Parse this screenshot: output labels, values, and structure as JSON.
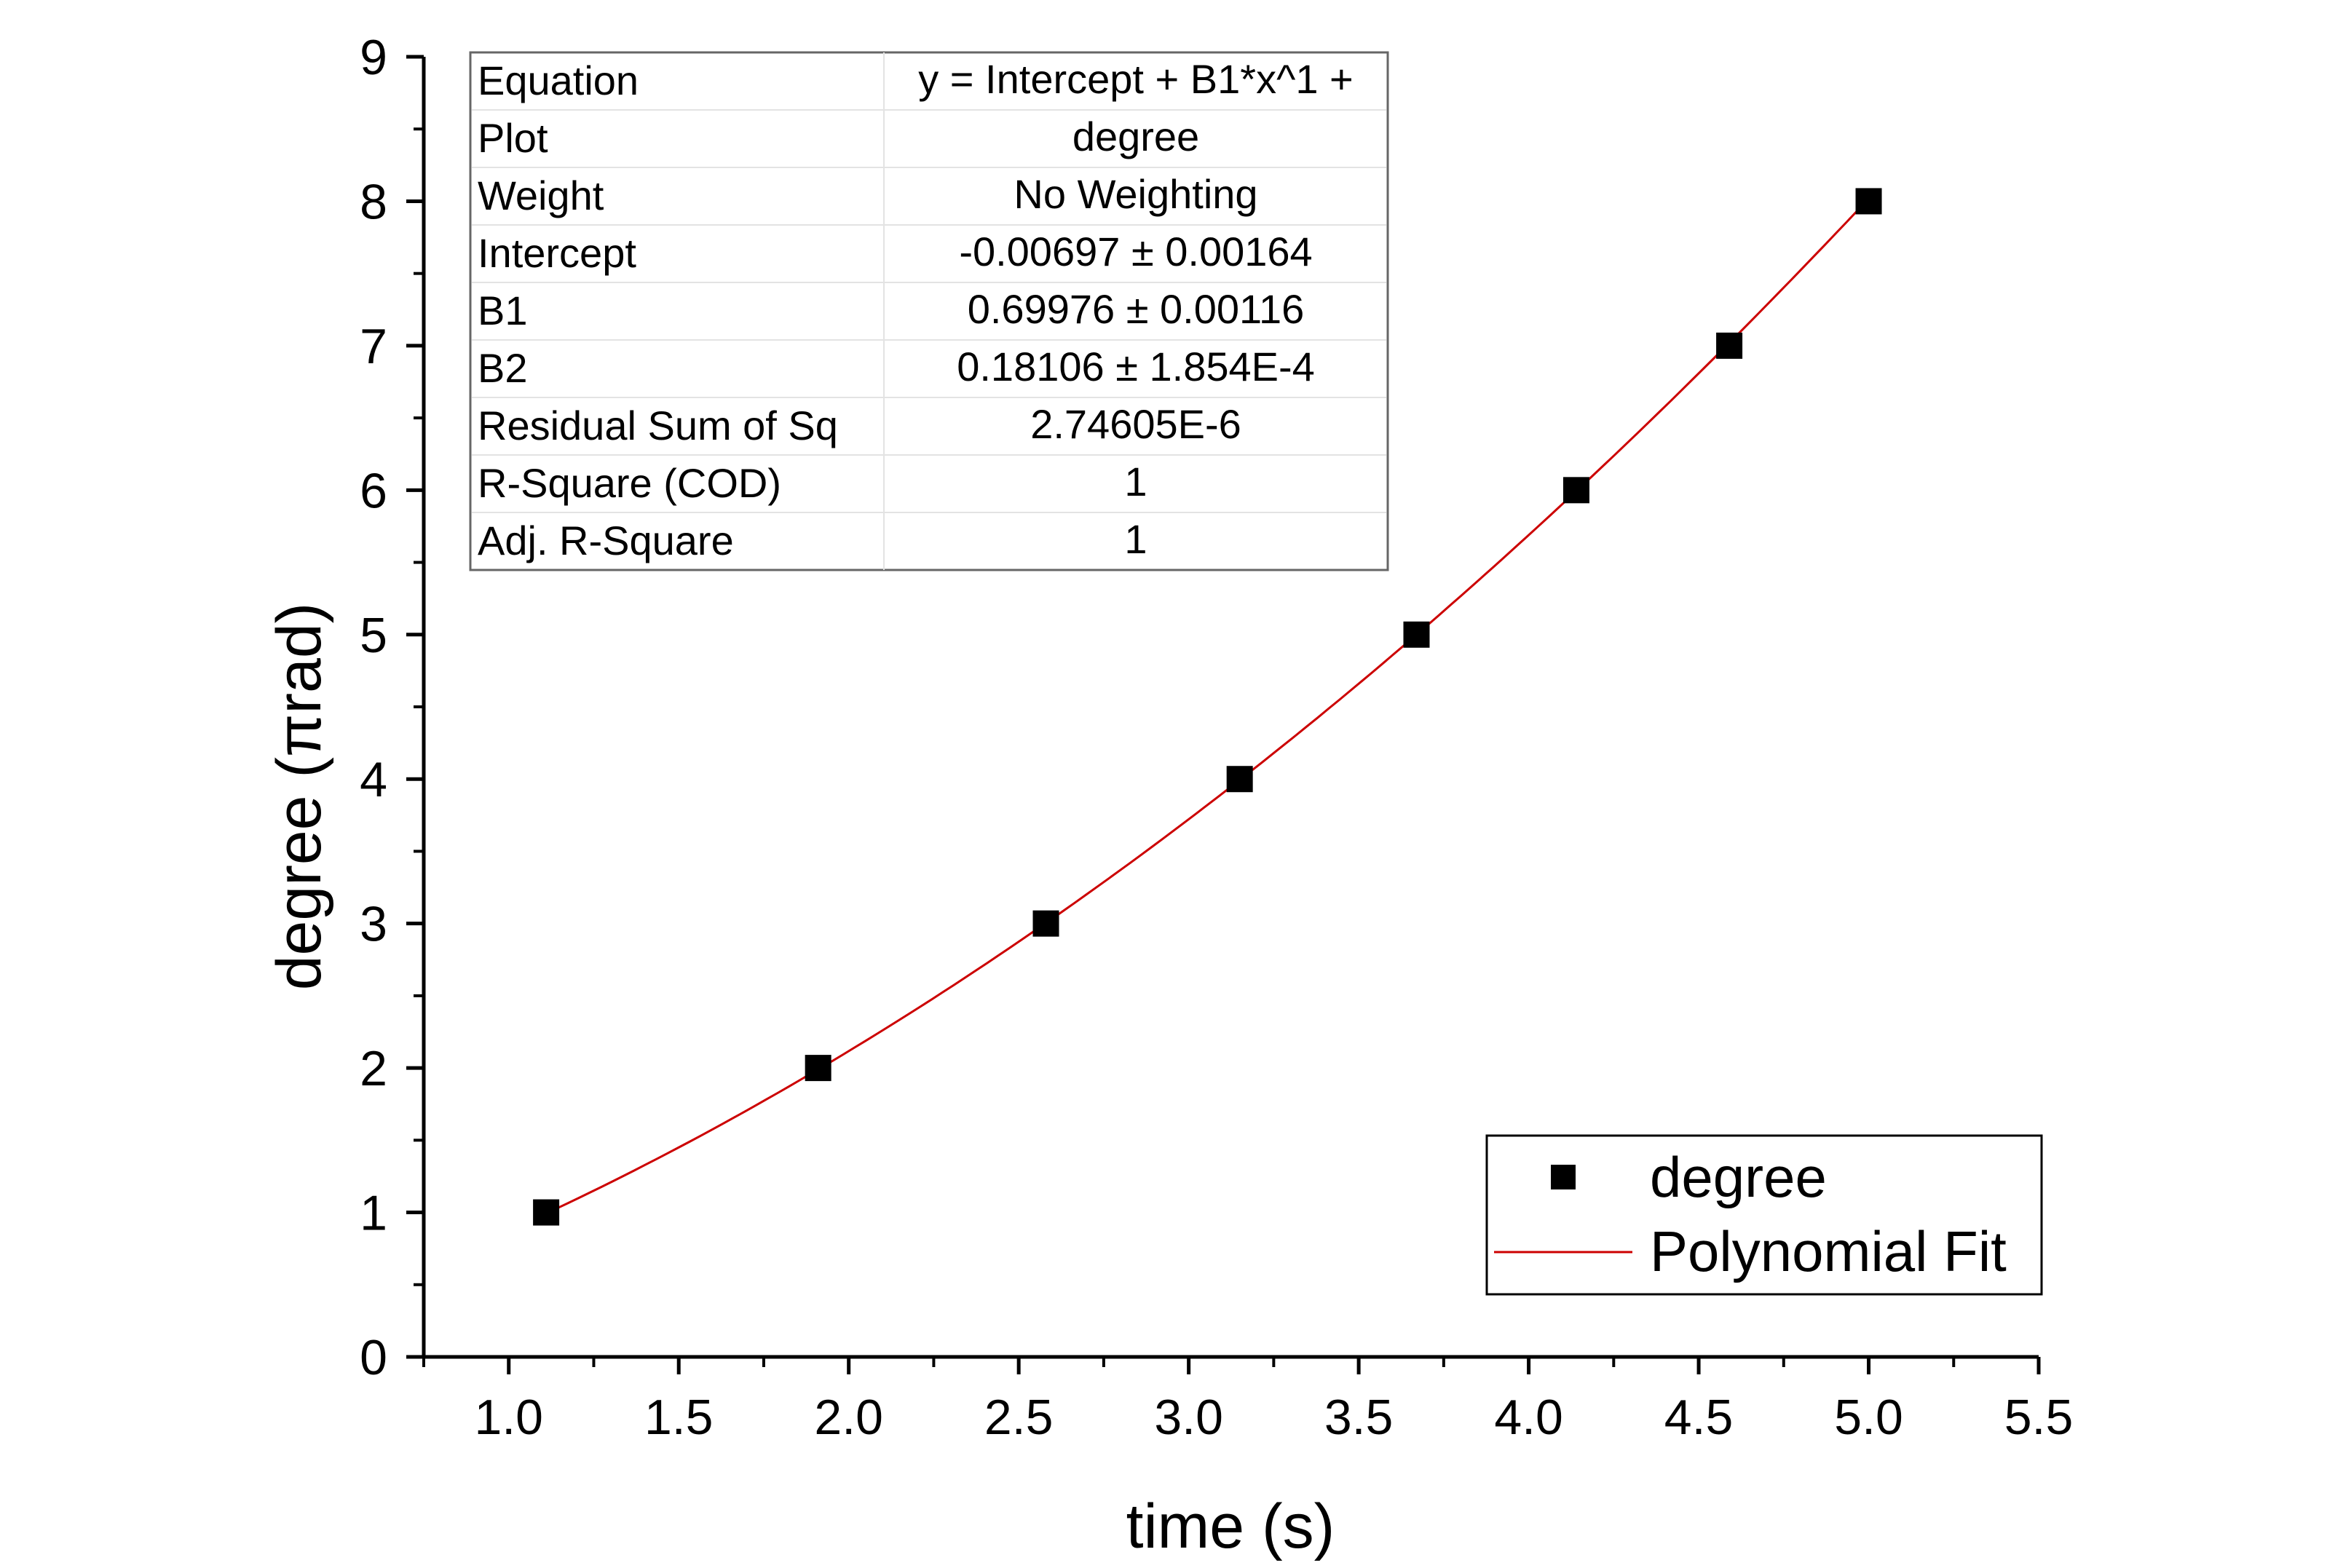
{
  "chart_data": {
    "type": "scatter",
    "xlabel": "time (s)",
    "ylabel": "degree (πrad)",
    "xlim": [
      0.75,
      5.5
    ],
    "ylim": [
      0,
      9
    ],
    "x_ticks": [
      "1.0",
      "1.5",
      "2.0",
      "2.5",
      "3.0",
      "3.5",
      "4.0",
      "4.5",
      "5.0",
      "5.5"
    ],
    "y_ticks": [
      "0",
      "1",
      "2",
      "3",
      "4",
      "5",
      "6",
      "7",
      "8",
      "9"
    ],
    "grid": false,
    "legend_position": "bottom-right",
    "series": [
      {
        "name": "degree",
        "kind": "scatter",
        "marker": "square",
        "color": "#000000",
        "x": [
          1.11,
          1.91,
          2.58,
          3.15,
          3.67,
          4.14,
          4.59,
          5.0
        ],
        "y": [
          1,
          2,
          3,
          4,
          5,
          6,
          7,
          8
        ]
      },
      {
        "name": "Polynomial Fit",
        "kind": "line",
        "color": "#cc0000",
        "x_range": [
          1.11,
          5.0
        ],
        "coefficients": {
          "intercept": -0.00697,
          "b1": 0.69976,
          "b2": 0.18106
        }
      }
    ],
    "stats_table": {
      "rows": [
        {
          "label": "Equation",
          "value": "y = Intercept + B1*x^1 +"
        },
        {
          "label": "Plot",
          "value": "degree"
        },
        {
          "label": "Weight",
          "value": "No Weighting"
        },
        {
          "label": "Intercept",
          "value": "-0.00697 ± 0.00164"
        },
        {
          "label": "B1",
          "value": "0.69976 ± 0.00116"
        },
        {
          "label": "B2",
          "value": "0.18106 ± 1.854E-4"
        },
        {
          "label": "Residual Sum of Sq",
          "value": "2.74605E-6"
        },
        {
          "label": "R-Square (COD)",
          "value": "1"
        },
        {
          "label": "Adj. R-Square",
          "value": "1"
        }
      ]
    }
  }
}
